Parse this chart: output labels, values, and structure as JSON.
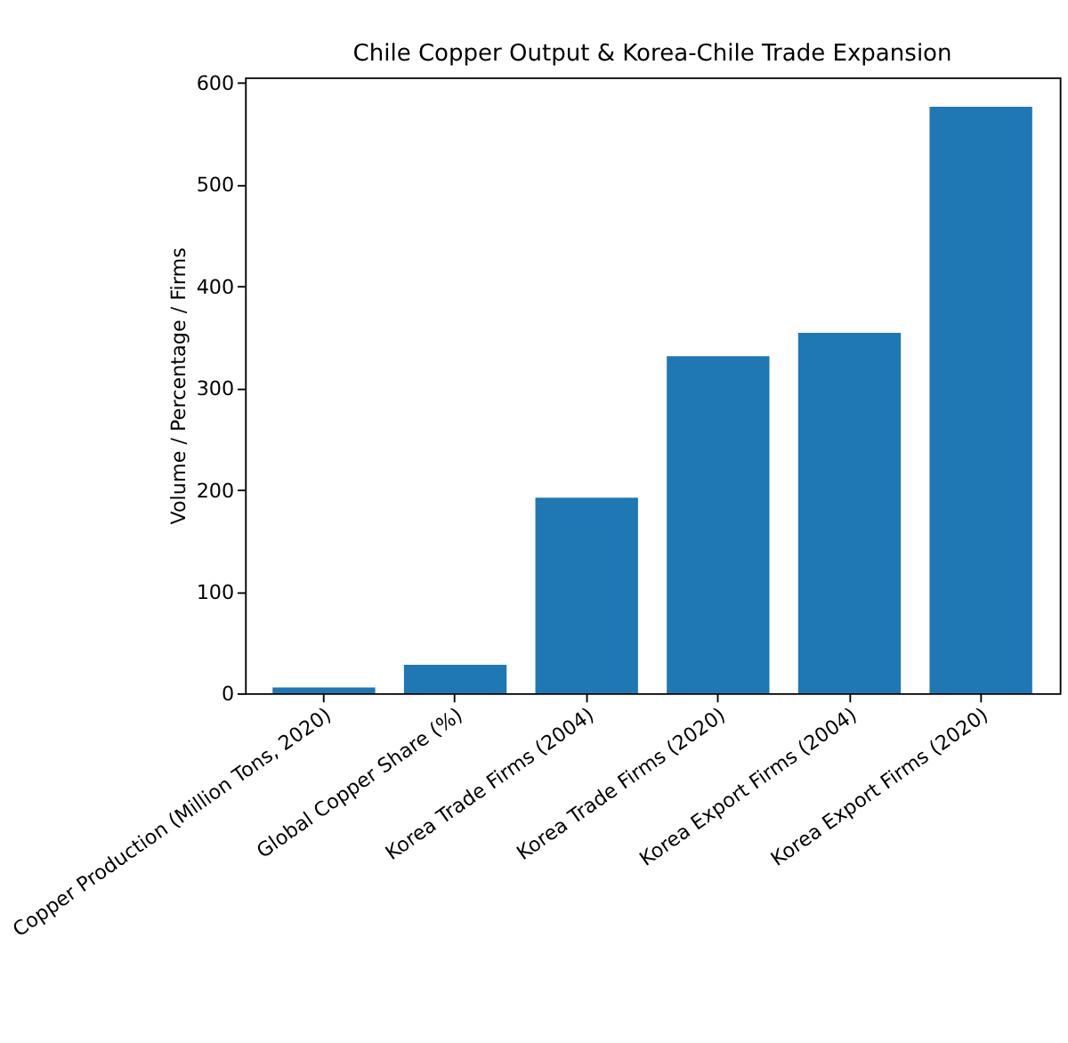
{
  "chart_data": {
    "type": "bar",
    "title": "Chile Copper Output & Korea-Chile Trade Expansion",
    "ylabel": "Volume / Percentage / Firms",
    "categories": [
      "Copper Production (Million Tons, 2020)",
      "Global Copper Share (%)",
      "Korea Trade Firms (2004)",
      "Korea Trade Firms (2020)",
      "Korea Export Firms (2004)",
      "Korea Export Firms (2020)"
    ],
    "values": [
      5.7,
      28,
      192,
      331,
      354,
      576
    ],
    "color": "#1f77b4",
    "ylim": [
      0,
      605
    ],
    "yticks": [
      0,
      100,
      200,
      300,
      400,
      500,
      600
    ],
    "grid": false
  }
}
